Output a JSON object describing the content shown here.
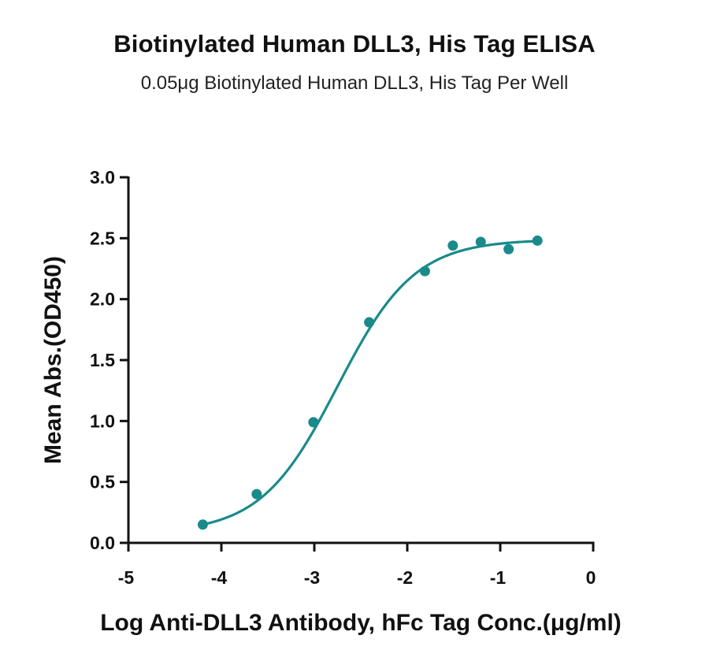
{
  "chart_data": {
    "type": "scatter",
    "title": "Biotinylated Human DLL3, His Tag ELISA",
    "subtitle": "0.05μg Biotinylated Human DLL3, His Tag Per Well",
    "xlabel": "Log  Anti-DLL3 Antibody, hFc Tag Conc.(μg/ml)",
    "ylabel": "Mean Abs.(OD450)",
    "xlim": [
      -5,
      0
    ],
    "ylim": [
      0,
      3.0
    ],
    "x_ticks": [
      "-5",
      "-4",
      "-3",
      "-2",
      "-1",
      "0"
    ],
    "y_ticks": [
      "0.0",
      "0.5",
      "1.0",
      "1.5",
      "2.0",
      "2.5",
      "3.0"
    ],
    "grid": false,
    "color": "#1a8a8a",
    "series": [
      {
        "x": [
          -4.2,
          -3.62,
          -3.01,
          -2.41,
          -1.81,
          -1.51,
          -1.21,
          -0.91,
          -0.6
        ],
        "y": [
          0.15,
          0.4,
          0.99,
          1.81,
          2.23,
          2.44,
          2.47,
          2.41,
          2.48
        ]
      }
    ],
    "fit_curve": {
      "bottom": 0.08,
      "top": 2.49,
      "log_ec50": -2.75,
      "hill": 1.05,
      "x_range": [
        -4.2,
        -0.6
      ]
    }
  }
}
